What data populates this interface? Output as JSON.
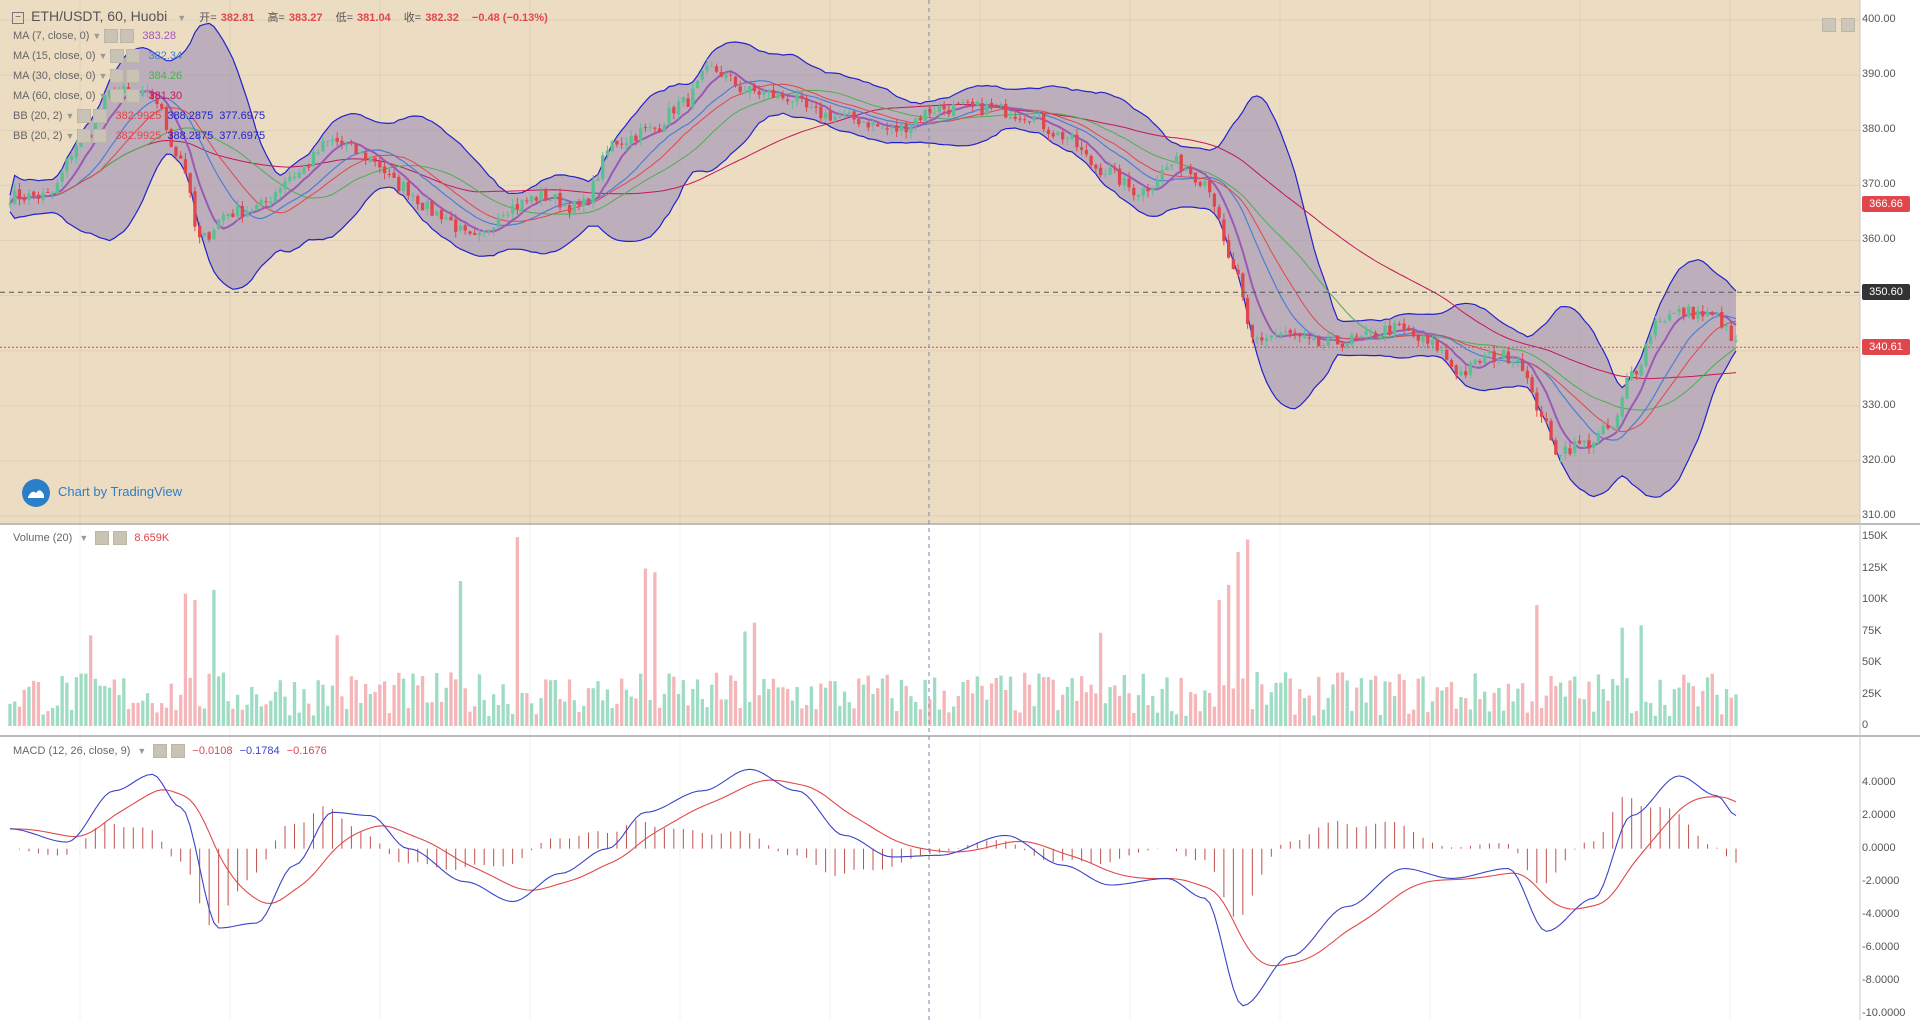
{
  "colors": {
    "up": "#5bbf94",
    "down": "#e0474c",
    "volume_up": "#9fdcc4",
    "volume_down": "#f4b6b8",
    "ma7": "#9b59b6",
    "ma15": "#4a7fd4",
    "ma30": "#4caf50",
    "ma60": "#c2185b",
    "bb_line": "#2222cc",
    "bb_fill": "#9e8fb5",
    "macd_line": "#3b44c8",
    "signal_line": "#e04a4a",
    "hist": "#c0504d",
    "bg_main": "#ecdcc2",
    "last_price_tag": "#e0474c",
    "hline_tag": "#333333"
  },
  "header": {
    "title": "ETH/USDT, 60, Huobi",
    "open_label": "开=",
    "open": "382.81",
    "high_label": "高=",
    "high": "383.27",
    "low_label": "低=",
    "low": "381.04",
    "close_label": "收=",
    "close": "382.32",
    "change": "−0.48 (−0.13%)"
  },
  "indicators": [
    {
      "name": "MA (7, close, 0)",
      "values": [
        "383.28"
      ],
      "value_colors": [
        "#9b59b6"
      ]
    },
    {
      "name": "MA (15, close, 0)",
      "values": [
        "382.34"
      ],
      "value_colors": [
        "#4a7fd4"
      ]
    },
    {
      "name": "MA (30, close, 0)",
      "values": [
        "384.26"
      ],
      "value_colors": [
        "#4caf50"
      ]
    },
    {
      "name": "MA (60, close, 0)",
      "values": [
        "381.30"
      ],
      "value_colors": [
        "#c2185b"
      ]
    },
    {
      "name": "BB (20, 2)",
      "values": [
        "382.9925",
        "388.2875",
        "377.6975"
      ],
      "value_colors": [
        "#e0474c",
        "#2222cc",
        "#2222cc"
      ]
    },
    {
      "name": "BB (20, 2)",
      "values": [
        "382.9925",
        "388.2875",
        "377.6975"
      ],
      "value_colors": [
        "#e0474c",
        "#2222cc",
        "#2222cc"
      ]
    }
  ],
  "volume_legend": {
    "name": "Volume (20)",
    "value": "8.659K"
  },
  "macd_legend": {
    "name": "MACD (12, 26, close, 9)",
    "values": [
      "−0.0108",
      "−0.1784",
      "−0.1676"
    ],
    "value_colors": [
      "#e0474c",
      "#3b44c8",
      "#e0474c"
    ]
  },
  "branding": "Chart by TradingView",
  "chart_data": {
    "type": "candlestick",
    "symbol": "ETH/USDT",
    "interval": "60",
    "exchange": "Huobi",
    "price_axis": {
      "min": 310,
      "max": 400,
      "ticks": [
        "400.00",
        "390.00",
        "380.00",
        "370.00",
        "360.00",
        "350.00",
        "340.00",
        "330.00",
        "320.00",
        "310.00"
      ]
    },
    "horizontal_lines": [
      {
        "value": 350.6,
        "label": "350.60",
        "style": "dashed"
      },
      {
        "value": 340.61,
        "label": "340.61",
        "style": "dotted-red"
      }
    ],
    "last_price_tag": {
      "value": 366.66,
      "label": "366.66"
    },
    "price_anchors": [
      [
        0,
        368
      ],
      [
        8,
        368
      ],
      [
        15,
        378
      ],
      [
        22,
        387
      ],
      [
        30,
        386
      ],
      [
        36,
        375
      ],
      [
        40,
        360
      ],
      [
        46,
        365
      ],
      [
        52,
        366
      ],
      [
        60,
        372
      ],
      [
        68,
        378
      ],
      [
        76,
        375
      ],
      [
        82,
        370
      ],
      [
        90,
        365
      ],
      [
        98,
        360
      ],
      [
        105,
        366
      ],
      [
        112,
        368
      ],
      [
        120,
        366
      ],
      [
        128,
        378
      ],
      [
        135,
        380
      ],
      [
        142,
        385
      ],
      [
        148,
        391
      ],
      [
        156,
        387
      ],
      [
        164,
        386
      ],
      [
        170,
        383
      ],
      [
        178,
        382
      ],
      [
        186,
        380
      ],
      [
        196,
        384
      ],
      [
        206,
        384
      ],
      [
        214,
        383
      ],
      [
        222,
        379
      ],
      [
        230,
        373
      ],
      [
        238,
        369
      ],
      [
        246,
        374
      ],
      [
        252,
        371
      ],
      [
        258,
        355
      ],
      [
        262,
        342
      ],
      [
        268,
        343
      ],
      [
        276,
        341
      ],
      [
        284,
        342
      ],
      [
        292,
        344
      ],
      [
        300,
        341
      ],
      [
        306,
        336
      ],
      [
        312,
        339
      ],
      [
        318,
        339
      ],
      [
        322,
        330
      ],
      [
        326,
        322
      ],
      [
        332,
        323
      ],
      [
        338,
        326
      ],
      [
        342,
        336
      ],
      [
        348,
        346
      ],
      [
        354,
        347
      ],
      [
        360,
        346
      ],
      [
        364,
        341
      ]
    ],
    "volume_axis": {
      "min": 0,
      "max": 150000,
      "ticks": [
        "150K",
        "125K",
        "100K",
        "75K",
        "50K",
        "25K",
        "0"
      ]
    },
    "volume_spikes": [
      [
        17,
        72000
      ],
      [
        37,
        105000
      ],
      [
        39,
        100000
      ],
      [
        43,
        108000
      ],
      [
        69,
        72000
      ],
      [
        95,
        115000
      ],
      [
        107,
        150000
      ],
      [
        134,
        125000
      ],
      [
        136,
        122000
      ],
      [
        155,
        75000
      ],
      [
        157,
        82000
      ],
      [
        230,
        74000
      ],
      [
        255,
        100000
      ],
      [
        257,
        112000
      ],
      [
        259,
        138000
      ],
      [
        261,
        148000
      ],
      [
        322,
        96000
      ],
      [
        340,
        78000
      ],
      [
        344,
        80000
      ]
    ],
    "macd_axis": {
      "min": -10,
      "max": 5,
      "ticks": [
        "4.0000",
        "2.0000",
        "0.0000",
        "-2.0000",
        "-4.0000",
        "-6.0000",
        "-8.0000",
        "-10.0000"
      ]
    },
    "macd_anchors": [
      [
        0,
        1.2
      ],
      [
        12,
        0.4
      ],
      [
        22,
        3.5
      ],
      [
        30,
        4.5
      ],
      [
        36,
        2.5
      ],
      [
        44,
        -4.8
      ],
      [
        52,
        -4.5
      ],
      [
        60,
        -1
      ],
      [
        68,
        2.2
      ],
      [
        76,
        2
      ],
      [
        84,
        0
      ],
      [
        96,
        -2
      ],
      [
        106,
        -3.2
      ],
      [
        116,
        -1.5
      ],
      [
        126,
        0
      ],
      [
        134,
        2.2
      ],
      [
        146,
        3.5
      ],
      [
        156,
        4.8
      ],
      [
        166,
        3.5
      ],
      [
        176,
        0.8
      ],
      [
        186,
        -0.5
      ],
      [
        196,
        -0.4
      ],
      [
        210,
        0.8
      ],
      [
        222,
        -1
      ],
      [
        232,
        -2.2
      ],
      [
        244,
        -1.8
      ],
      [
        252,
        -3
      ],
      [
        260,
        -9.5
      ],
      [
        270,
        -6.5
      ],
      [
        282,
        -3.5
      ],
      [
        294,
        -1.2
      ],
      [
        304,
        -1.8
      ],
      [
        316,
        -1.2
      ],
      [
        324,
        -5
      ],
      [
        334,
        -3
      ],
      [
        342,
        2
      ],
      [
        352,
        4.4
      ],
      [
        360,
        3.2
      ],
      [
        364,
        2
      ]
    ],
    "bars": 365
  }
}
